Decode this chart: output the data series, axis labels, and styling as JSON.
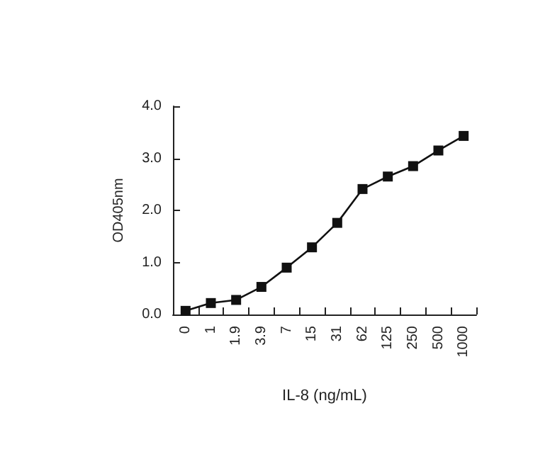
{
  "chart_data": {
    "type": "line",
    "xlabel": "IL-8 (ng/mL)",
    "ylabel": "OD405nm",
    "categories": [
      "0",
      "1",
      "1.9",
      "3.9",
      "7",
      "15",
      "31",
      "62",
      "125",
      "250",
      "500",
      "1000"
    ],
    "series": [
      {
        "color": "#111111",
        "values": [
          0.07,
          0.22,
          0.28,
          0.53,
          0.9,
          1.29,
          1.76,
          2.41,
          2.65,
          2.85,
          3.15,
          3.43
        ]
      }
    ],
    "ylim": [
      0,
      4
    ],
    "yticks": [
      {
        "value": 0,
        "label": "0.0"
      },
      {
        "value": 1,
        "label": "1.0"
      },
      {
        "value": 2,
        "label": "2.0"
      },
      {
        "value": 3,
        "label": "3.0"
      },
      {
        "value": 4,
        "label": "4.0"
      }
    ],
    "grid": false,
    "marker": "square",
    "line_style": "solid"
  }
}
